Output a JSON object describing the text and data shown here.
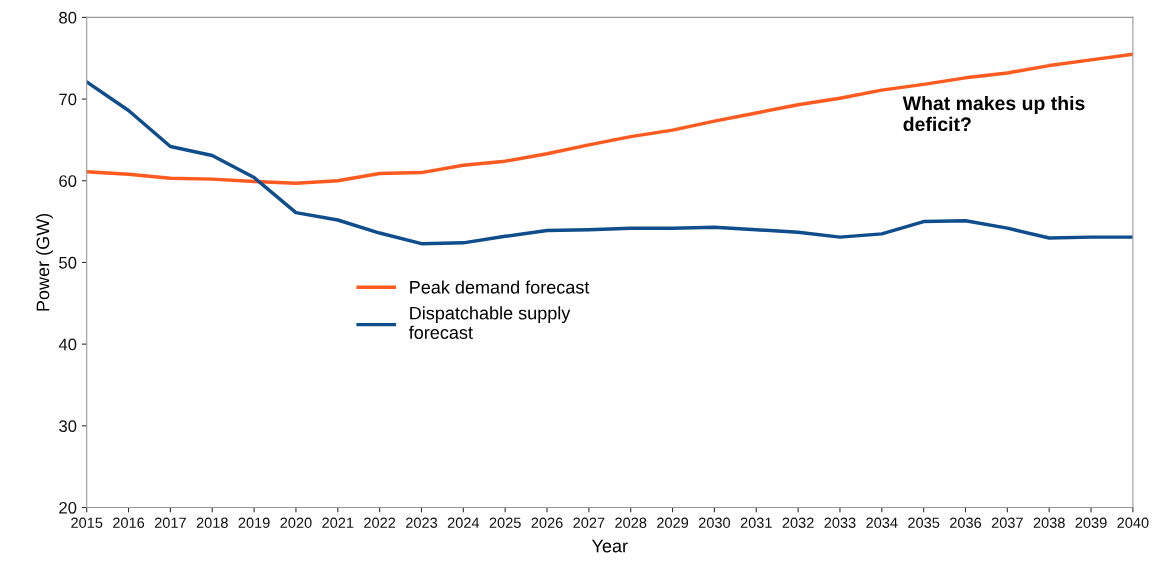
{
  "chart_data": {
    "type": "line",
    "xlabel": "Year",
    "ylabel": "Power (GW)",
    "x": [
      2015,
      2016,
      2017,
      2018,
      2019,
      2020,
      2021,
      2022,
      2023,
      2024,
      2025,
      2026,
      2027,
      2028,
      2029,
      2030,
      2031,
      2032,
      2033,
      2034,
      2035,
      2036,
      2037,
      2038,
      2039,
      2040
    ],
    "series": [
      {
        "name": "Peak demand forecast",
        "color": "#ff5a1f",
        "values": [
          61.1,
          60.8,
          60.3,
          60.2,
          59.9,
          59.7,
          60.0,
          60.9,
          61.0,
          61.9,
          62.4,
          63.3,
          64.4,
          65.4,
          66.2,
          67.3,
          68.3,
          69.3,
          70.1,
          71.1,
          71.8,
          72.6,
          73.2,
          74.1,
          74.8,
          75.5
        ]
      },
      {
        "name": "Dispatchable supply\nforecast",
        "color": "#0f4d8c",
        "values": [
          72.1,
          68.6,
          64.2,
          63.1,
          60.4,
          56.1,
          55.2,
          53.6,
          52.3,
          52.4,
          53.2,
          53.9,
          54.0,
          54.2,
          54.2,
          54.3,
          54.0,
          53.7,
          53.1,
          53.5,
          55.0,
          55.1,
          54.2,
          53.0,
          53.1,
          53.1
        ]
      }
    ],
    "xlim": [
      2015,
      2040
    ],
    "xticks": [
      2015,
      2016,
      2017,
      2018,
      2019,
      2020,
      2021,
      2022,
      2023,
      2024,
      2025,
      2026,
      2027,
      2028,
      2029,
      2030,
      2031,
      2032,
      2033,
      2034,
      2035,
      2036,
      2037,
      2038,
      2039,
      2040
    ],
    "ylim": [
      20,
      80
    ],
    "yticks": [
      20,
      30,
      40,
      50,
      60,
      70,
      80
    ],
    "annotations": [
      "What makes up this deficit?"
    ],
    "grid": false,
    "legend": "center",
    "marker": "none",
    "line_style": "solid"
  }
}
